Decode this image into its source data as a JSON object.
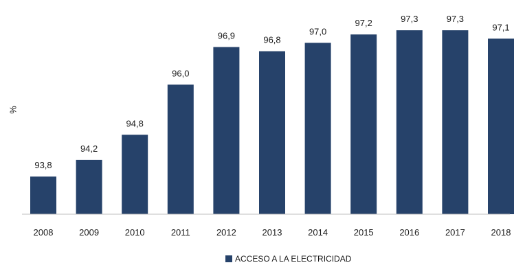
{
  "chart_data": {
    "type": "bar",
    "categories": [
      "2008",
      "2009",
      "2010",
      "2011",
      "2012",
      "2013",
      "2014",
      "2015",
      "2016",
      "2017",
      "2018"
    ],
    "values": [
      93.8,
      94.2,
      94.8,
      96.0,
      96.9,
      96.8,
      97.0,
      97.2,
      97.3,
      97.3,
      97.1
    ],
    "value_labels": [
      "93,8",
      "94,2",
      "94,8",
      "96,0",
      "96,9",
      "96,8",
      "97,0",
      "97,2",
      "97,3",
      "97,3",
      "97,1"
    ],
    "ylabel": "%",
    "ylim": [
      92.9,
      97.45
    ],
    "grid": false,
    "legend_position": "bottom-center",
    "series": [
      {
        "name": "ACCESO A LA ELECTRICIDAD",
        "color": "#26426a"
      }
    ]
  }
}
